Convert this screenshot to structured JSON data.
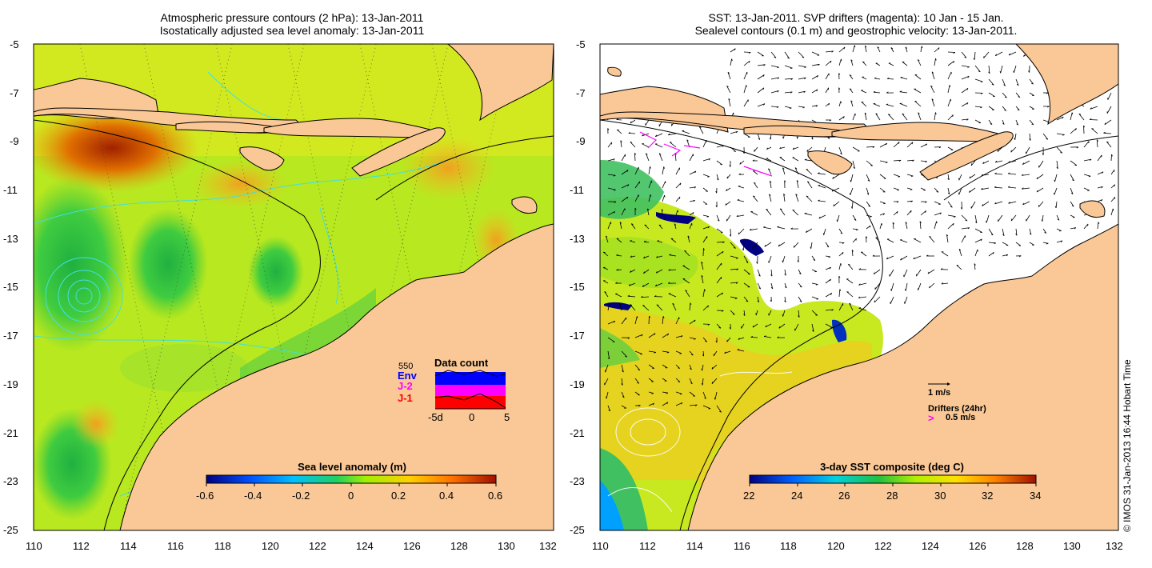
{
  "left_panel": {
    "title_line1": "Atmospheric pressure contours (2 hPa): 13-Jan-2011",
    "title_line2": "Isostatically adjusted sea level anomaly: 13-Jan-2011",
    "lat_ticks": [
      "-5",
      "-7",
      "-9",
      "-11",
      "-13",
      "-15",
      "-17",
      "-19",
      "-21",
      "-23",
      "-25"
    ],
    "lon_ticks": [
      "110",
      "112",
      "114",
      "116",
      "118",
      "120",
      "122",
      "124",
      "126",
      "128",
      "130",
      "132"
    ],
    "colorbar": {
      "title": "Sea level anomaly (m)",
      "ticks": [
        "-0.6",
        "-0.4",
        "-0.2",
        "0",
        "0.2",
        "0.4",
        "0.6"
      ],
      "colors": [
        "#00007f",
        "#0040ff",
        "#00bfff",
        "#20d060",
        "#c0f000",
        "#ffc000",
        "#ff6000",
        "#a01000"
      ]
    },
    "data_count": {
      "title": "Data count",
      "max_label": "550",
      "series": [
        {
          "name": "Env",
          "color": "#0000ff"
        },
        {
          "name": "J-2",
          "color": "#ff00ff"
        },
        {
          "name": "J-1",
          "color": "#ff0000"
        }
      ],
      "x_ticks": [
        "-5d",
        "0",
        "5"
      ]
    }
  },
  "right_panel": {
    "title_line1": "SST: 13-Jan-2011. SVP drifters (magenta): 10 Jan - 15 Jan.",
    "title_line2": "Sealevel contours (0.1 m) and geostrophic velocity: 13-Jan-2011.",
    "lat_ticks": [
      "-5",
      "-7",
      "-9",
      "-11",
      "-13",
      "-15",
      "-17",
      "-19",
      "-21",
      "-23",
      "-25"
    ],
    "lon_ticks": [
      "110",
      "112",
      "114",
      "116",
      "118",
      "120",
      "122",
      "124",
      "126",
      "128",
      "130",
      "132"
    ],
    "colorbar": {
      "title": "3-day SST composite (deg C)",
      "ticks": [
        "22",
        "24",
        "26",
        "28",
        "30",
        "32",
        "34"
      ],
      "colors": [
        "#00007f",
        "#0060ff",
        "#00d0e0",
        "#20c040",
        "#b0f000",
        "#ffe000",
        "#ff8000",
        "#a01000"
      ]
    },
    "velocity_legend": {
      "label": "1 m/s"
    },
    "drifter_legend": {
      "title": "Drifters (24hr)",
      "symbol": ">",
      "label": "0.5 m/s"
    }
  },
  "footer_stamp": "© IMOS 31-Jan-2013 16:44 Hobart Time",
  "colors": {
    "land": "#fac896",
    "coast": "#000000",
    "contour_cyan": "#40e0e0",
    "drifter": "#ff00ff"
  }
}
